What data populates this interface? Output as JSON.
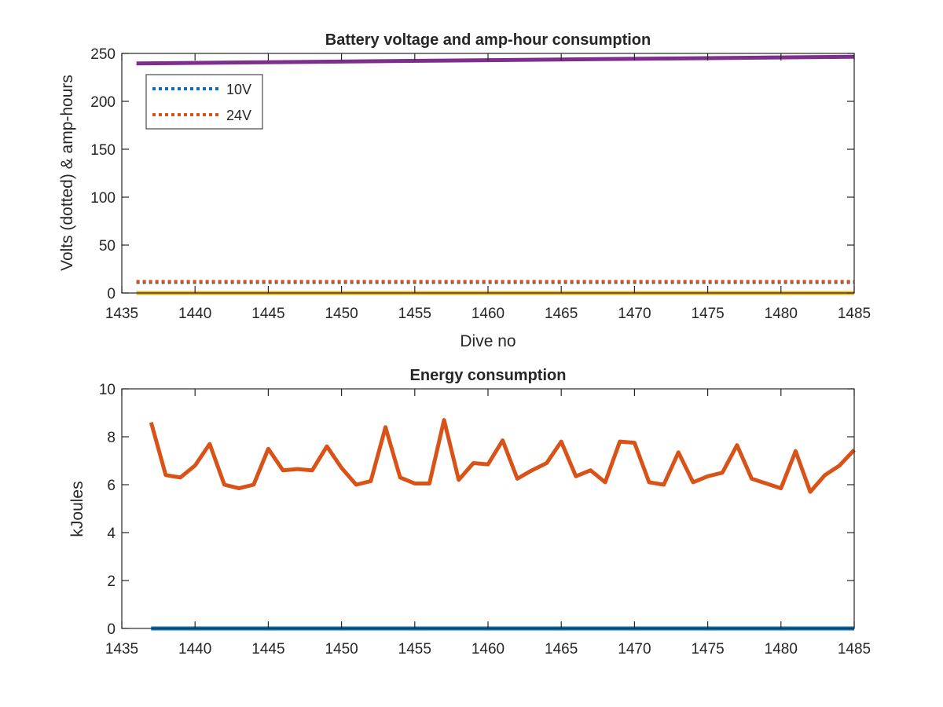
{
  "chart_data": [
    {
      "type": "line",
      "title": "Battery voltage and amp-hour consumption",
      "xlabel": "Dive no",
      "ylabel": "Volts (dotted) & amp-hours",
      "xlim": [
        1435,
        1485
      ],
      "ylim": [
        0,
        250
      ],
      "xticks": [
        "1435",
        "1440",
        "1445",
        "1450",
        "1455",
        "1460",
        "1465",
        "1470",
        "1475",
        "1480",
        "1485"
      ],
      "yticks": [
        "0",
        "50",
        "100",
        "150",
        "200",
        "250"
      ],
      "legend_position": "top-left",
      "grid": false,
      "series": [
        {
          "name": "10V",
          "style": "dotted",
          "color": "#0072BD",
          "x": [
            1436,
            1485
          ],
          "values": [
            11.2,
            11.2
          ]
        },
        {
          "name": "24V",
          "style": "dotted",
          "color": "#D95319",
          "x": [
            1436,
            1485
          ],
          "values": [
            12.0,
            12.0
          ]
        },
        {
          "style": "solid",
          "color": "#EDB120",
          "x": [
            1436,
            1485
          ],
          "values": [
            0,
            0
          ]
        },
        {
          "style": "solid",
          "color": "#7E2F8E",
          "x": [
            1436,
            1485
          ],
          "values": [
            239.5,
            246.5
          ]
        }
      ]
    },
    {
      "type": "line",
      "title": "Energy consumption",
      "xlabel": "",
      "ylabel": "kJoules",
      "xlim": [
        1435,
        1485
      ],
      "ylim": [
        0,
        10
      ],
      "xticks": [
        "1435",
        "1440",
        "1445",
        "1450",
        "1455",
        "1460",
        "1465",
        "1470",
        "1475",
        "1480",
        "1485"
      ],
      "yticks": [
        "0",
        "2",
        "4",
        "6",
        "8",
        "10"
      ],
      "grid": false,
      "series": [
        {
          "style": "solid",
          "color": "#0072BD",
          "x": [
            1437,
            1485
          ],
          "values": [
            0,
            0
          ]
        },
        {
          "style": "solid",
          "color": "#D95319",
          "x": [
            1437,
            1438,
            1439,
            1440,
            1441,
            1442,
            1443,
            1444,
            1445,
            1446,
            1447,
            1448,
            1449,
            1450,
            1451,
            1452,
            1453,
            1454,
            1455,
            1456,
            1457,
            1458,
            1459,
            1460,
            1461,
            1462,
            1463,
            1464,
            1465,
            1466,
            1467,
            1468,
            1469,
            1470,
            1471,
            1472,
            1473,
            1474,
            1475,
            1476,
            1477,
            1478,
            1479,
            1480,
            1481,
            1482,
            1483,
            1484,
            1485
          ],
          "values": [
            8.6,
            6.4,
            6.3,
            6.8,
            7.7,
            6.0,
            5.85,
            6.0,
            7.5,
            6.6,
            6.65,
            6.6,
            7.6,
            6.7,
            6.0,
            6.15,
            8.4,
            6.3,
            6.05,
            6.05,
            8.7,
            6.2,
            6.9,
            6.85,
            7.85,
            6.25,
            6.6,
            6.9,
            7.8,
            6.35,
            6.6,
            6.1,
            7.8,
            7.75,
            6.1,
            6.0,
            7.35,
            6.1,
            6.35,
            6.5,
            7.65,
            6.25,
            6.05,
            5.85,
            7.4,
            5.7,
            6.4,
            6.8,
            7.45
          ]
        }
      ]
    }
  ]
}
